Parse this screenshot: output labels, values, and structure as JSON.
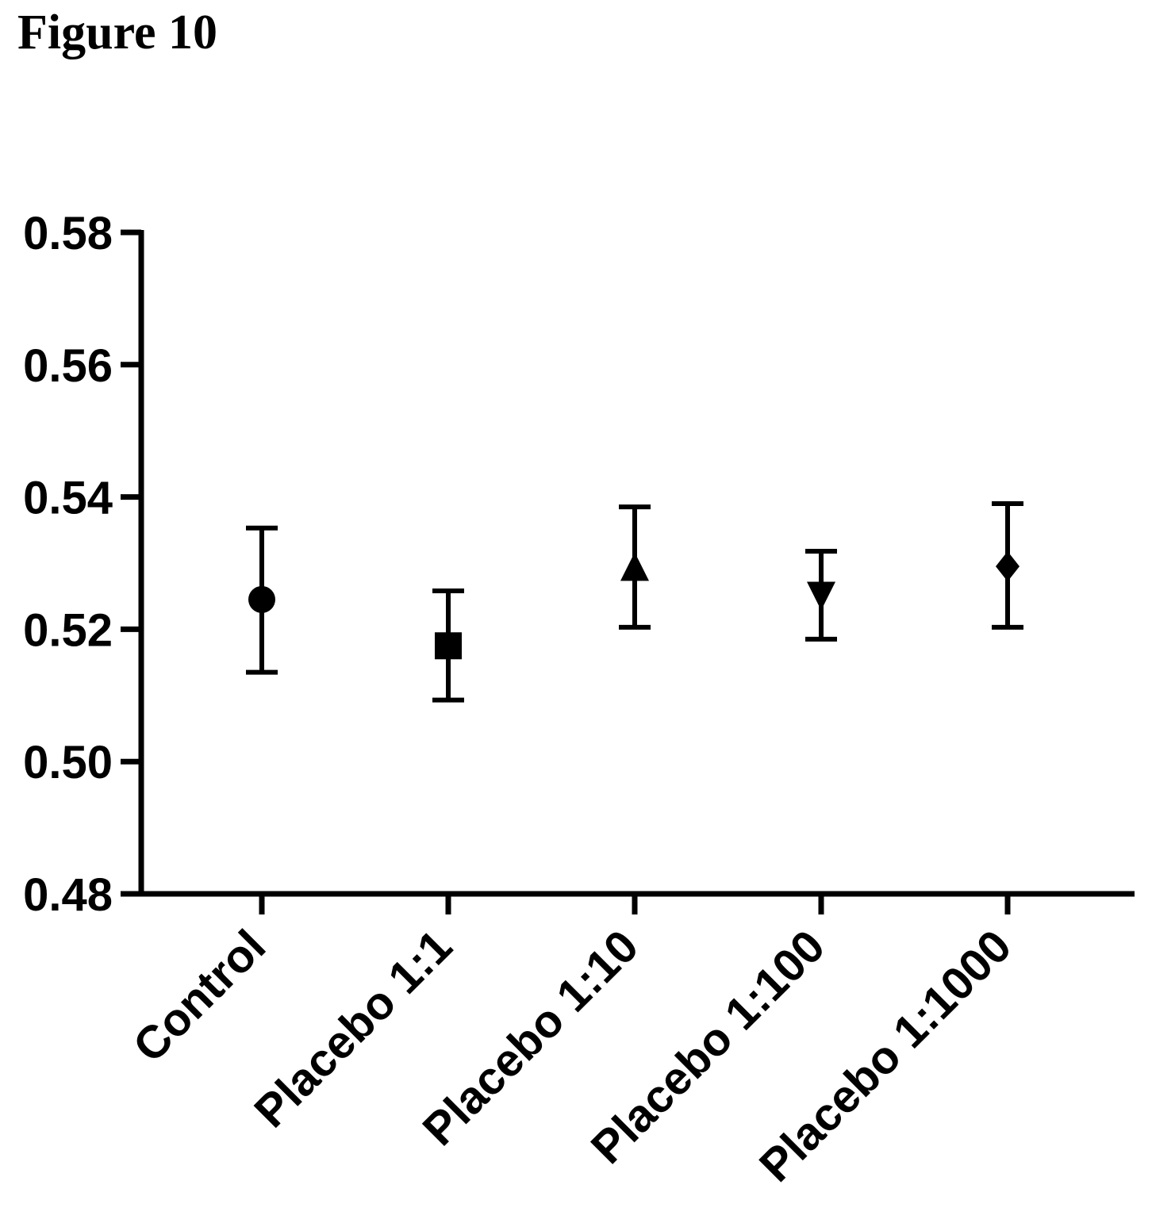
{
  "figure": {
    "label": "Figure 10"
  },
  "chart_data": {
    "type": "scatter",
    "title": "",
    "xlabel": "",
    "ylabel": "",
    "ylim": [
      0.48,
      0.58
    ],
    "yticks": [
      "0.48",
      "0.50",
      "0.52",
      "0.54",
      "0.56",
      "0.58"
    ],
    "categories": [
      "Control",
      "Placebo 1:1",
      "Placebo 1:10",
      "Placebo 1:100",
      "Placebo 1:1000"
    ],
    "points": [
      {
        "category": "Control",
        "mean": 0.5245,
        "lower": 0.5135,
        "upper": 0.5353,
        "marker": "circle"
      },
      {
        "category": "Placebo 1:1",
        "mean": 0.5175,
        "lower": 0.5093,
        "upper": 0.5258,
        "marker": "square"
      },
      {
        "category": "Placebo 1:10",
        "mean": 0.529,
        "lower": 0.5203,
        "upper": 0.5385,
        "marker": "triangle-up"
      },
      {
        "category": "Placebo 1:100",
        "mean": 0.5255,
        "lower": 0.5185,
        "upper": 0.5318,
        "marker": "triangle-down"
      },
      {
        "category": "Placebo 1:1000",
        "mean": 0.5295,
        "lower": 0.5203,
        "upper": 0.539,
        "marker": "diamond"
      }
    ],
    "grid": false,
    "legend": "none",
    "color": "#000000"
  }
}
